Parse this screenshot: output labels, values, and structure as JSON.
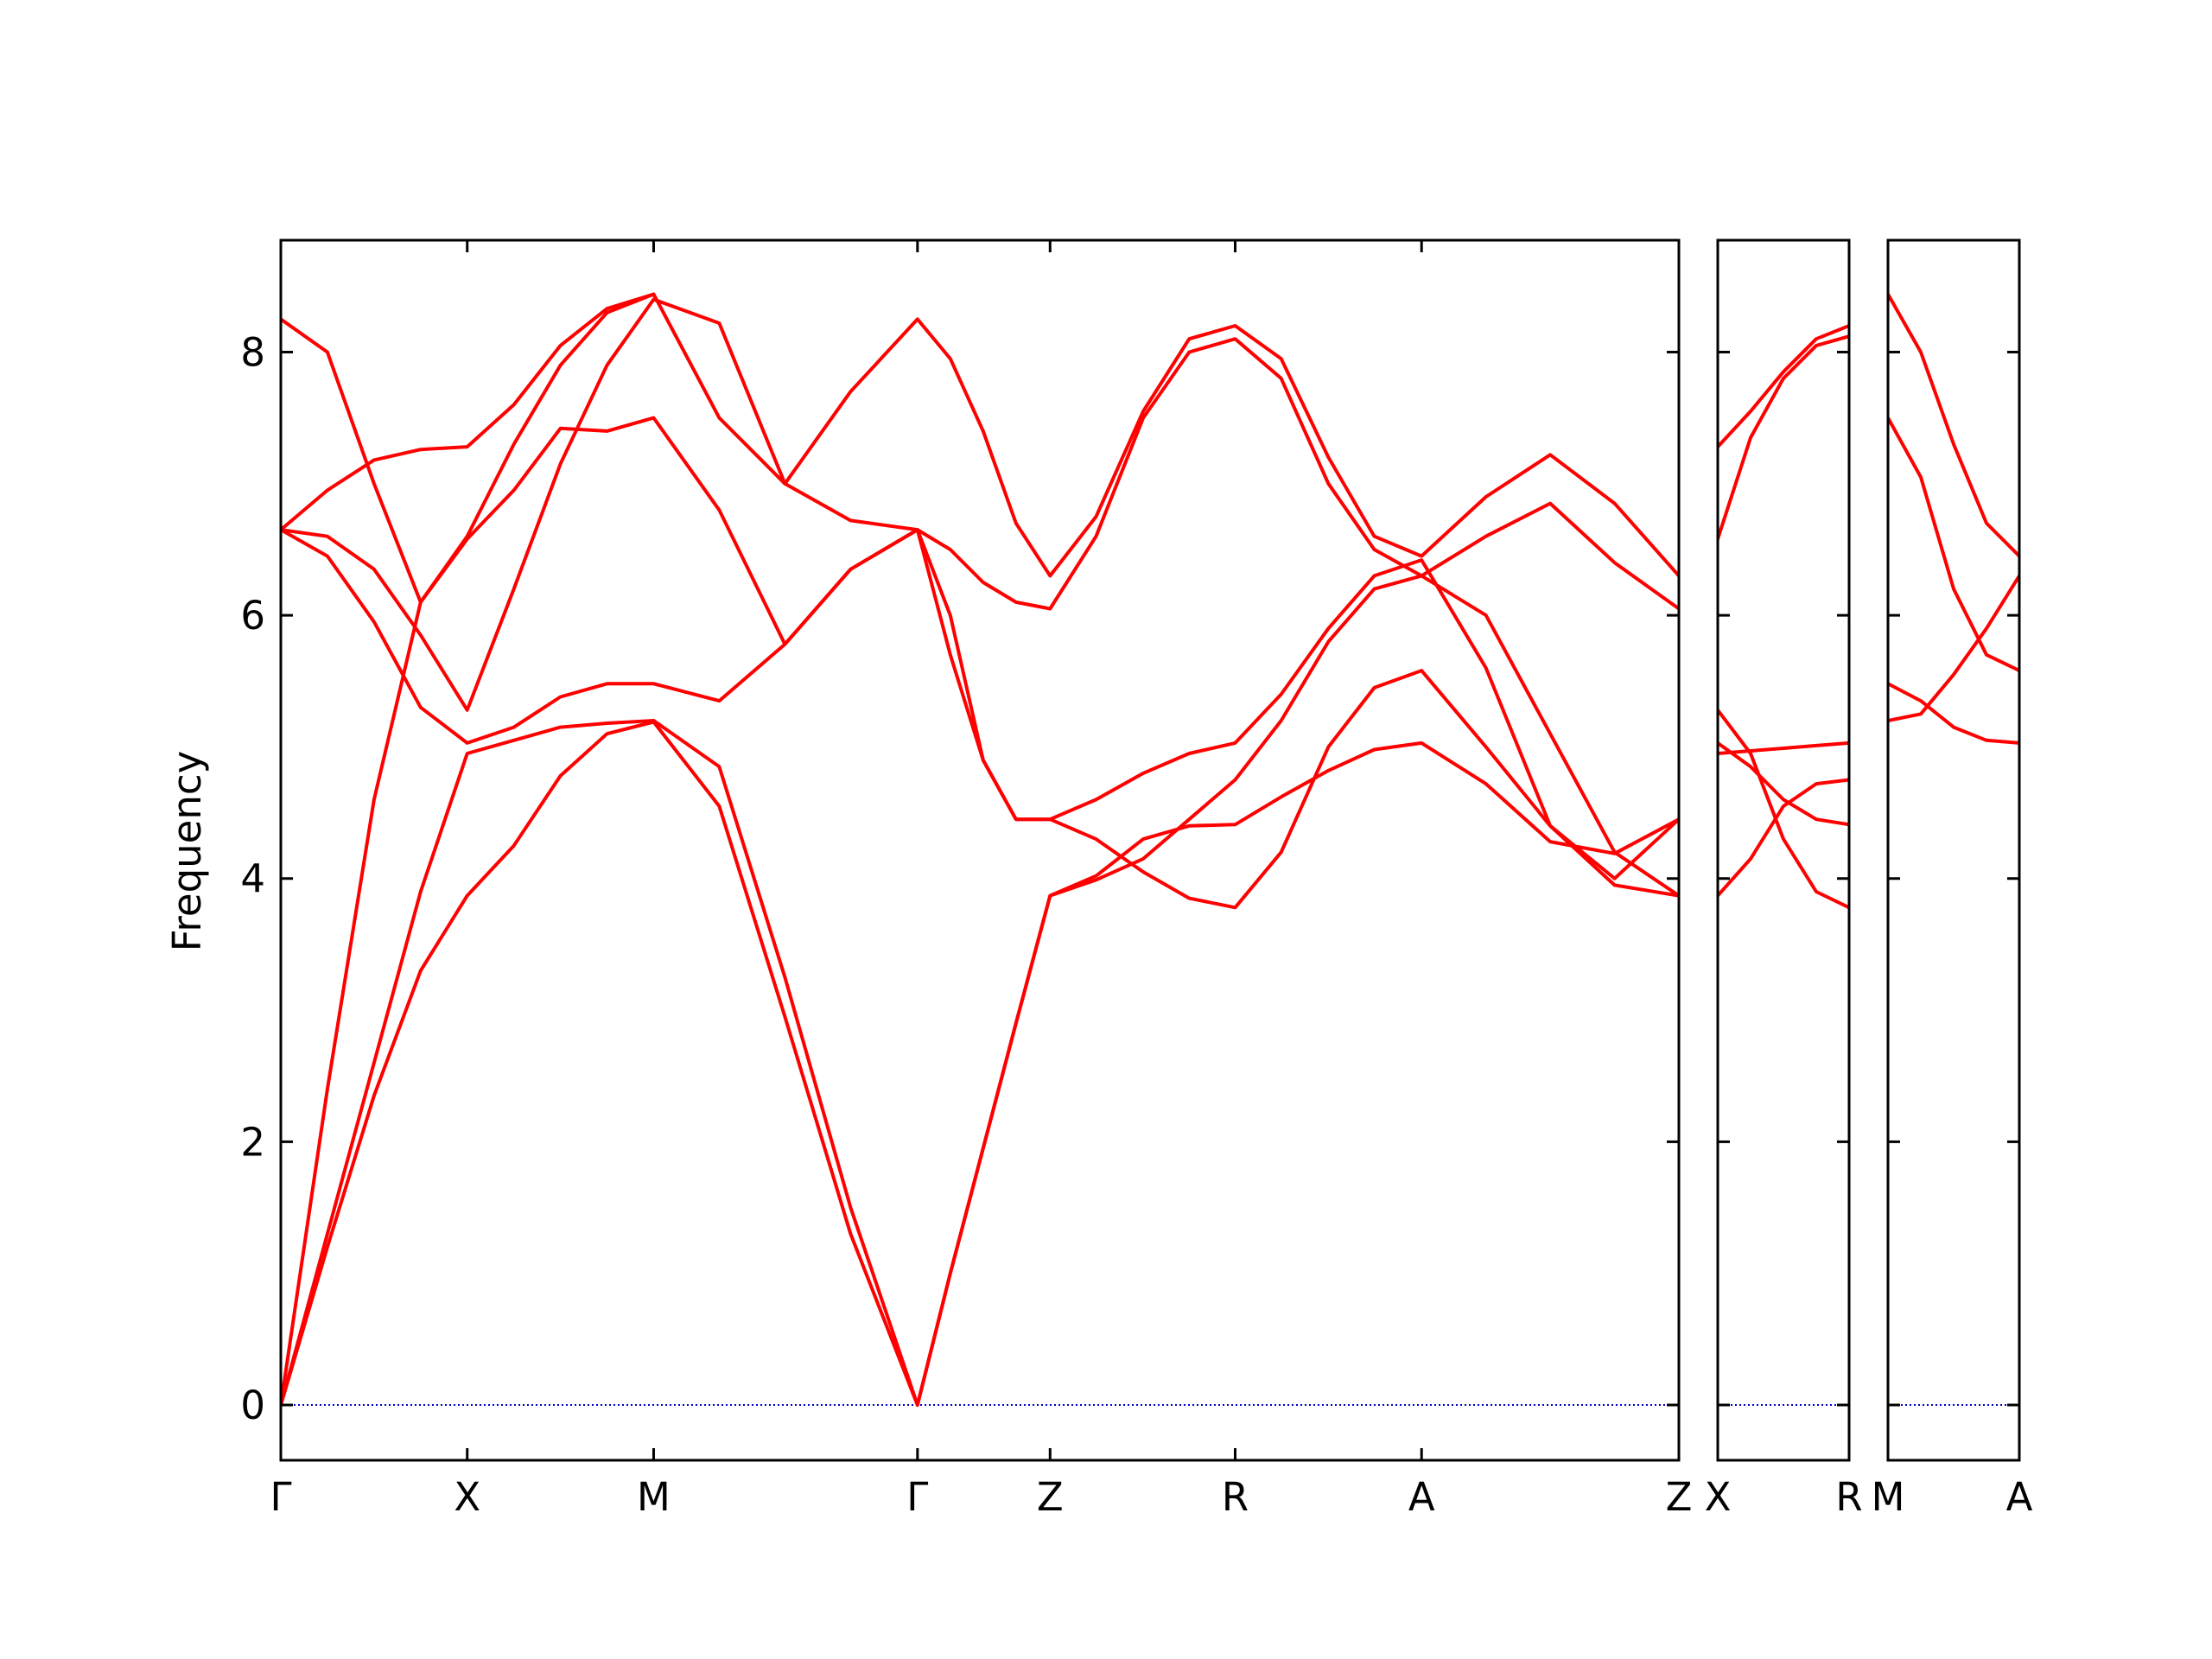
{
  "chart_data": {
    "type": "line",
    "ylabel": "Frequency",
    "ylim": [
      -0.42,
      8.85
    ],
    "yticks": [
      0,
      2,
      4,
      6,
      8
    ],
    "zero_line": true,
    "grid": false,
    "legend": "none",
    "colors": {
      "bands": "#ff0000",
      "zero_line": "#0000cc",
      "axes": "#000000"
    },
    "panels": [
      {
        "xlim": [
          0,
          10.65
        ],
        "ticks": [
          {
            "x": 0.0,
            "label": "Γ"
          },
          {
            "x": 1.42,
            "label": "X"
          },
          {
            "x": 2.84,
            "label": "M"
          },
          {
            "x": 4.85,
            "label": "Γ"
          },
          {
            "x": 5.86,
            "label": "Z"
          },
          {
            "x": 7.27,
            "label": "R"
          },
          {
            "x": 8.69,
            "label": "A"
          },
          {
            "x": 10.65,
            "label": "Z"
          }
        ],
        "series": [
          {
            "x": [
              0,
              0.355,
              0.71,
              1.065,
              1.42,
              1.775,
              2.13,
              2.485,
              2.84,
              3.34,
              3.84,
              4.34,
              4.85,
              5.1,
              5.35,
              5.6,
              5.86,
              6.21,
              6.57,
              6.92,
              7.27,
              7.62,
              7.98,
              8.33,
              8.69,
              9.18,
              9.67,
              10.16,
              10.65
            ],
            "y": [
              0,
              1.2,
              2.35,
              3.3,
              3.87,
              4.25,
              4.78,
              5.1,
              5.19,
              4.55,
              2.95,
              1.3,
              0,
              1.0,
              1.95,
              2.9,
              3.87,
              4.02,
              4.3,
              4.4,
              4.41,
              4.62,
              4.82,
              4.98,
              5.03,
              4.72,
              4.28,
              4.19,
              4.45
            ]
          },
          {
            "x": [
              0,
              0.355,
              0.71,
              1.065,
              1.42,
              1.775,
              2.13,
              2.485,
              2.84,
              3.34,
              3.84,
              4.34,
              4.85,
              5.1,
              5.35,
              5.6,
              5.86,
              6.21,
              6.57,
              6.92,
              7.27,
              7.62,
              7.98,
              8.33,
              8.69,
              9.18,
              9.67,
              10.16,
              10.65
            ],
            "y": [
              0,
              1.3,
              2.6,
              3.9,
              4.95,
              5.05,
              5.15,
              5.18,
              5.2,
              4.85,
              3.25,
              1.5,
              0,
              1.0,
              1.95,
              2.9,
              3.87,
              3.99,
              4.15,
              4.45,
              4.75,
              5.2,
              5.8,
              6.2,
              6.3,
              6.0,
              5.1,
              4.2,
              3.87
            ]
          },
          {
            "x": [
              0,
              0.355,
              0.71,
              1.065,
              1.42,
              1.775,
              2.13,
              2.485,
              2.84,
              3.34,
              3.84,
              4.34,
              4.85,
              5.1,
              5.35,
              5.6,
              5.86,
              6.21,
              6.57,
              6.92,
              7.27,
              7.62,
              7.98,
              8.33,
              8.69,
              9.18,
              9.67,
              10.16,
              10.65
            ],
            "y": [
              0,
              2.4,
              4.6,
              6.1,
              6.58,
              6.95,
              7.42,
              7.4,
              7.5,
              6.8,
              5.78,
              6.35,
              6.65,
              6.0,
              4.9,
              4.45,
              4.45,
              4.3,
              4.05,
              3.85,
              3.78,
              4.2,
              5.0,
              5.45,
              5.58,
              5.0,
              4.4,
              3.95,
              3.87
            ]
          },
          {
            "x": [
              0,
              0.355,
              0.71,
              1.065,
              1.42,
              1.775,
              2.13,
              2.485,
              2.84,
              3.34,
              3.84,
              4.34,
              4.85,
              5.1,
              5.35,
              5.6,
              5.86,
              6.21,
              6.57,
              6.92,
              7.27,
              7.62,
              7.98,
              8.33,
              8.69,
              9.18,
              9.67,
              10.16,
              10.65
            ],
            "y": [
              6.65,
              6.45,
              5.95,
              5.3,
              5.03,
              5.15,
              5.38,
              5.48,
              5.48,
              5.35,
              5.78,
              6.35,
              6.65,
              5.7,
              4.9,
              4.45,
              4.45,
              4.6,
              4.8,
              4.95,
              5.03,
              5.4,
              5.9,
              6.3,
              6.42,
              5.6,
              4.4,
              4.0,
              4.45
            ]
          },
          {
            "x": [
              0,
              0.355,
              0.71,
              1.065,
              1.42,
              1.775,
              2.13,
              2.485,
              2.84,
              3.34,
              3.84,
              4.34,
              4.85,
              5.1,
              5.35,
              5.6,
              5.86,
              6.21,
              6.57,
              6.92,
              7.27,
              7.62,
              7.98,
              8.33,
              8.69,
              9.18,
              9.67,
              10.16,
              10.65
            ],
            "y": [
              6.65,
              6.6,
              6.35,
              5.85,
              5.28,
              6.2,
              7.15,
              7.9,
              8.4,
              8.22,
              7.0,
              6.72,
              6.65,
              6.5,
              6.25,
              6.1,
              6.05,
              6.6,
              7.5,
              8.0,
              8.1,
              7.8,
              7.0,
              6.5,
              6.3,
              6.6,
              6.85,
              6.4,
              6.05
            ]
          },
          {
            "x": [
              0,
              0.355,
              0.71,
              1.065,
              1.42,
              1.775,
              2.13,
              2.485,
              2.84,
              3.34,
              3.84,
              4.34,
              4.85,
              5.1,
              5.35,
              5.6,
              5.86,
              6.21,
              6.57,
              6.92,
              7.27,
              7.62,
              7.98,
              8.33,
              8.69,
              9.18,
              9.67,
              10.16,
              10.65
            ],
            "y": [
              8.25,
              8.0,
              7.0,
              6.1,
              6.6,
              7.3,
              7.9,
              8.3,
              8.44,
              7.5,
              7.0,
              7.7,
              8.25,
              7.95,
              7.4,
              6.7,
              6.3,
              6.75,
              7.55,
              8.1,
              8.2,
              7.95,
              7.2,
              6.6,
              6.45,
              6.9,
              7.22,
              6.85,
              6.3
            ]
          },
          {
            "x": [
              0,
              0.355,
              0.71,
              1.065,
              1.42,
              1.775,
              2.13,
              2.485,
              2.84
            ],
            "y": [
              6.65,
              6.95,
              7.18,
              7.26,
              7.28,
              7.6,
              8.05,
              8.33,
              8.44
            ]
          }
        ]
      },
      {
        "xlim": [
          0,
          1.0
        ],
        "ticks": [
          {
            "x": 0.0,
            "label": "X"
          },
          {
            "x": 1.0,
            "label": "R"
          }
        ],
        "series": [
          {
            "x": [
              0,
              0.25,
              0.5,
              0.75,
              1.0
            ],
            "y": [
              3.87,
              4.15,
              4.55,
              4.72,
              4.75
            ]
          },
          {
            "x": [
              0,
              0.25,
              0.5,
              0.75,
              1.0
            ],
            "y": [
              4.95,
              4.97,
              4.99,
              5.01,
              5.03
            ]
          },
          {
            "x": [
              0,
              0.25,
              0.5,
              0.75,
              1.0
            ],
            "y": [
              5.03,
              4.85,
              4.6,
              4.45,
              4.41
            ]
          },
          {
            "x": [
              0,
              0.25,
              0.5,
              0.75,
              1.0
            ],
            "y": [
              5.28,
              4.95,
              4.3,
              3.9,
              3.78
            ]
          },
          {
            "x": [
              0,
              0.25,
              0.5,
              0.75,
              1.0
            ],
            "y": [
              6.58,
              7.35,
              7.8,
              8.05,
              8.12
            ]
          },
          {
            "x": [
              0,
              0.25,
              0.5,
              0.75,
              1.0
            ],
            "y": [
              7.28,
              7.55,
              7.85,
              8.1,
              8.2
            ]
          }
        ]
      },
      {
        "xlim": [
          0,
          1.0
        ],
        "ticks": [
          {
            "x": 0.0,
            "label": "M"
          },
          {
            "x": 1.0,
            "label": "A"
          }
        ],
        "series": [
          {
            "x": [
              0,
              0.25,
              0.5,
              0.75,
              1.0
            ],
            "y": [
              5.2,
              5.25,
              5.55,
              5.9,
              6.3
            ]
          },
          {
            "x": [
              0,
              0.25,
              0.5,
              0.75,
              1.0
            ],
            "y": [
              5.48,
              5.35,
              5.15,
              5.05,
              5.03
            ]
          },
          {
            "x": [
              0,
              0.25,
              0.5,
              0.75,
              1.0
            ],
            "y": [
              7.5,
              7.05,
              6.2,
              5.7,
              5.58
            ]
          },
          {
            "x": [
              0,
              0.25,
              0.5,
              0.75,
              1.0
            ],
            "y": [
              8.44,
              8.0,
              7.3,
              6.7,
              6.45
            ]
          }
        ]
      }
    ]
  }
}
